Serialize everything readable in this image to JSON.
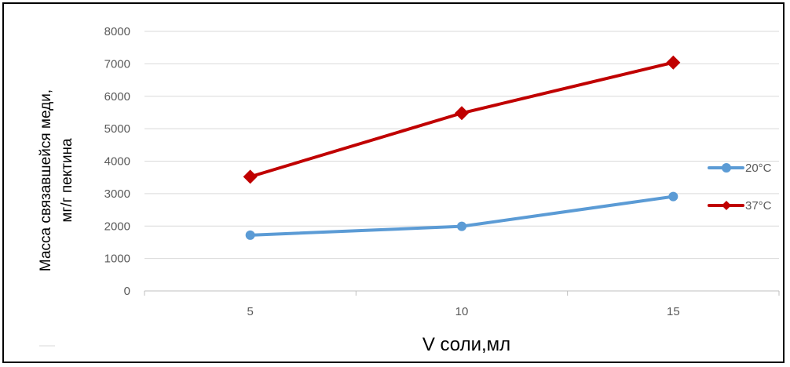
{
  "chart_data": {
    "type": "line",
    "categories": [
      "5",
      "10",
      "15"
    ],
    "series": [
      {
        "name": "20°C",
        "values": [
          1720,
          1990,
          2910
        ],
        "color": "#5B9BD5",
        "marker": "circle"
      },
      {
        "name": "37°C",
        "values": [
          3520,
          5480,
          7040
        ],
        "color": "#C00000",
        "marker": "diamond"
      }
    ],
    "ylabel_lines": [
      "Масса связавшейся меди,",
      "мг/г пектина"
    ],
    "xlabel": "V соли,мл",
    "ylim": [
      0,
      8000
    ],
    "yticks": [
      0,
      1000,
      2000,
      3000,
      4000,
      5000,
      6000,
      7000,
      8000
    ],
    "grid": true,
    "legend_position": "right"
  }
}
